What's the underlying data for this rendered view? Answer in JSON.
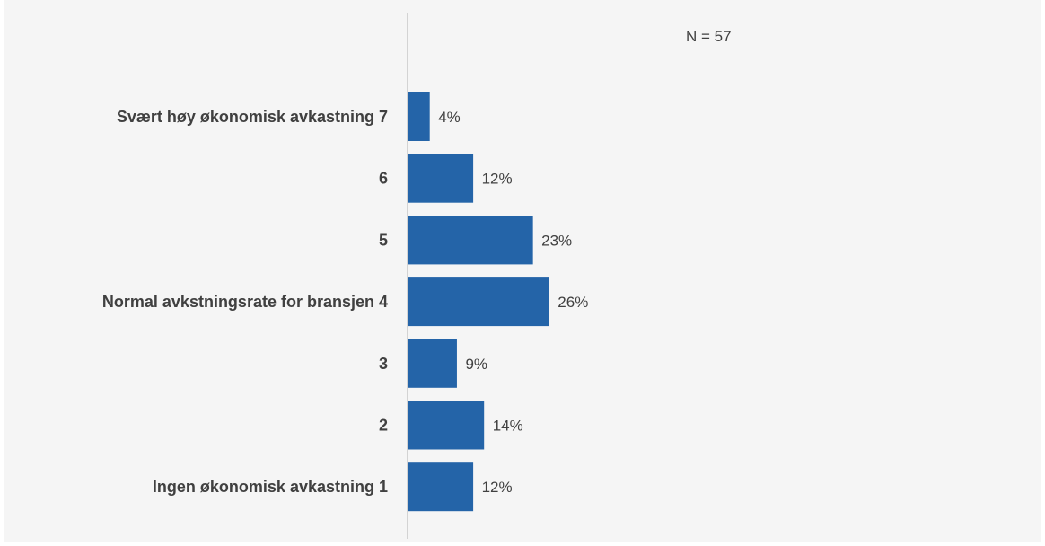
{
  "chart_data": {
    "type": "bar",
    "orientation": "horizontal",
    "categories": [
      "Svært høy økonomisk avkastning 7",
      "6",
      "5",
      "Normal avkstningsrate for bransjen 4",
      "3",
      "2",
      "Ingen økonomisk avkastning 1"
    ],
    "values": [
      4,
      12,
      23,
      26,
      9,
      14,
      12
    ],
    "value_labels": [
      "4%",
      "12%",
      "23%",
      "26%",
      "9%",
      "14%",
      "12%"
    ],
    "annotation": "N = 57",
    "xlim": [
      0,
      100
    ],
    "grid": false,
    "bar_color": "#2464a8",
    "axis_color": "#c8c8c8",
    "text_color": "#404040",
    "background_color": "#f5f5f5"
  }
}
